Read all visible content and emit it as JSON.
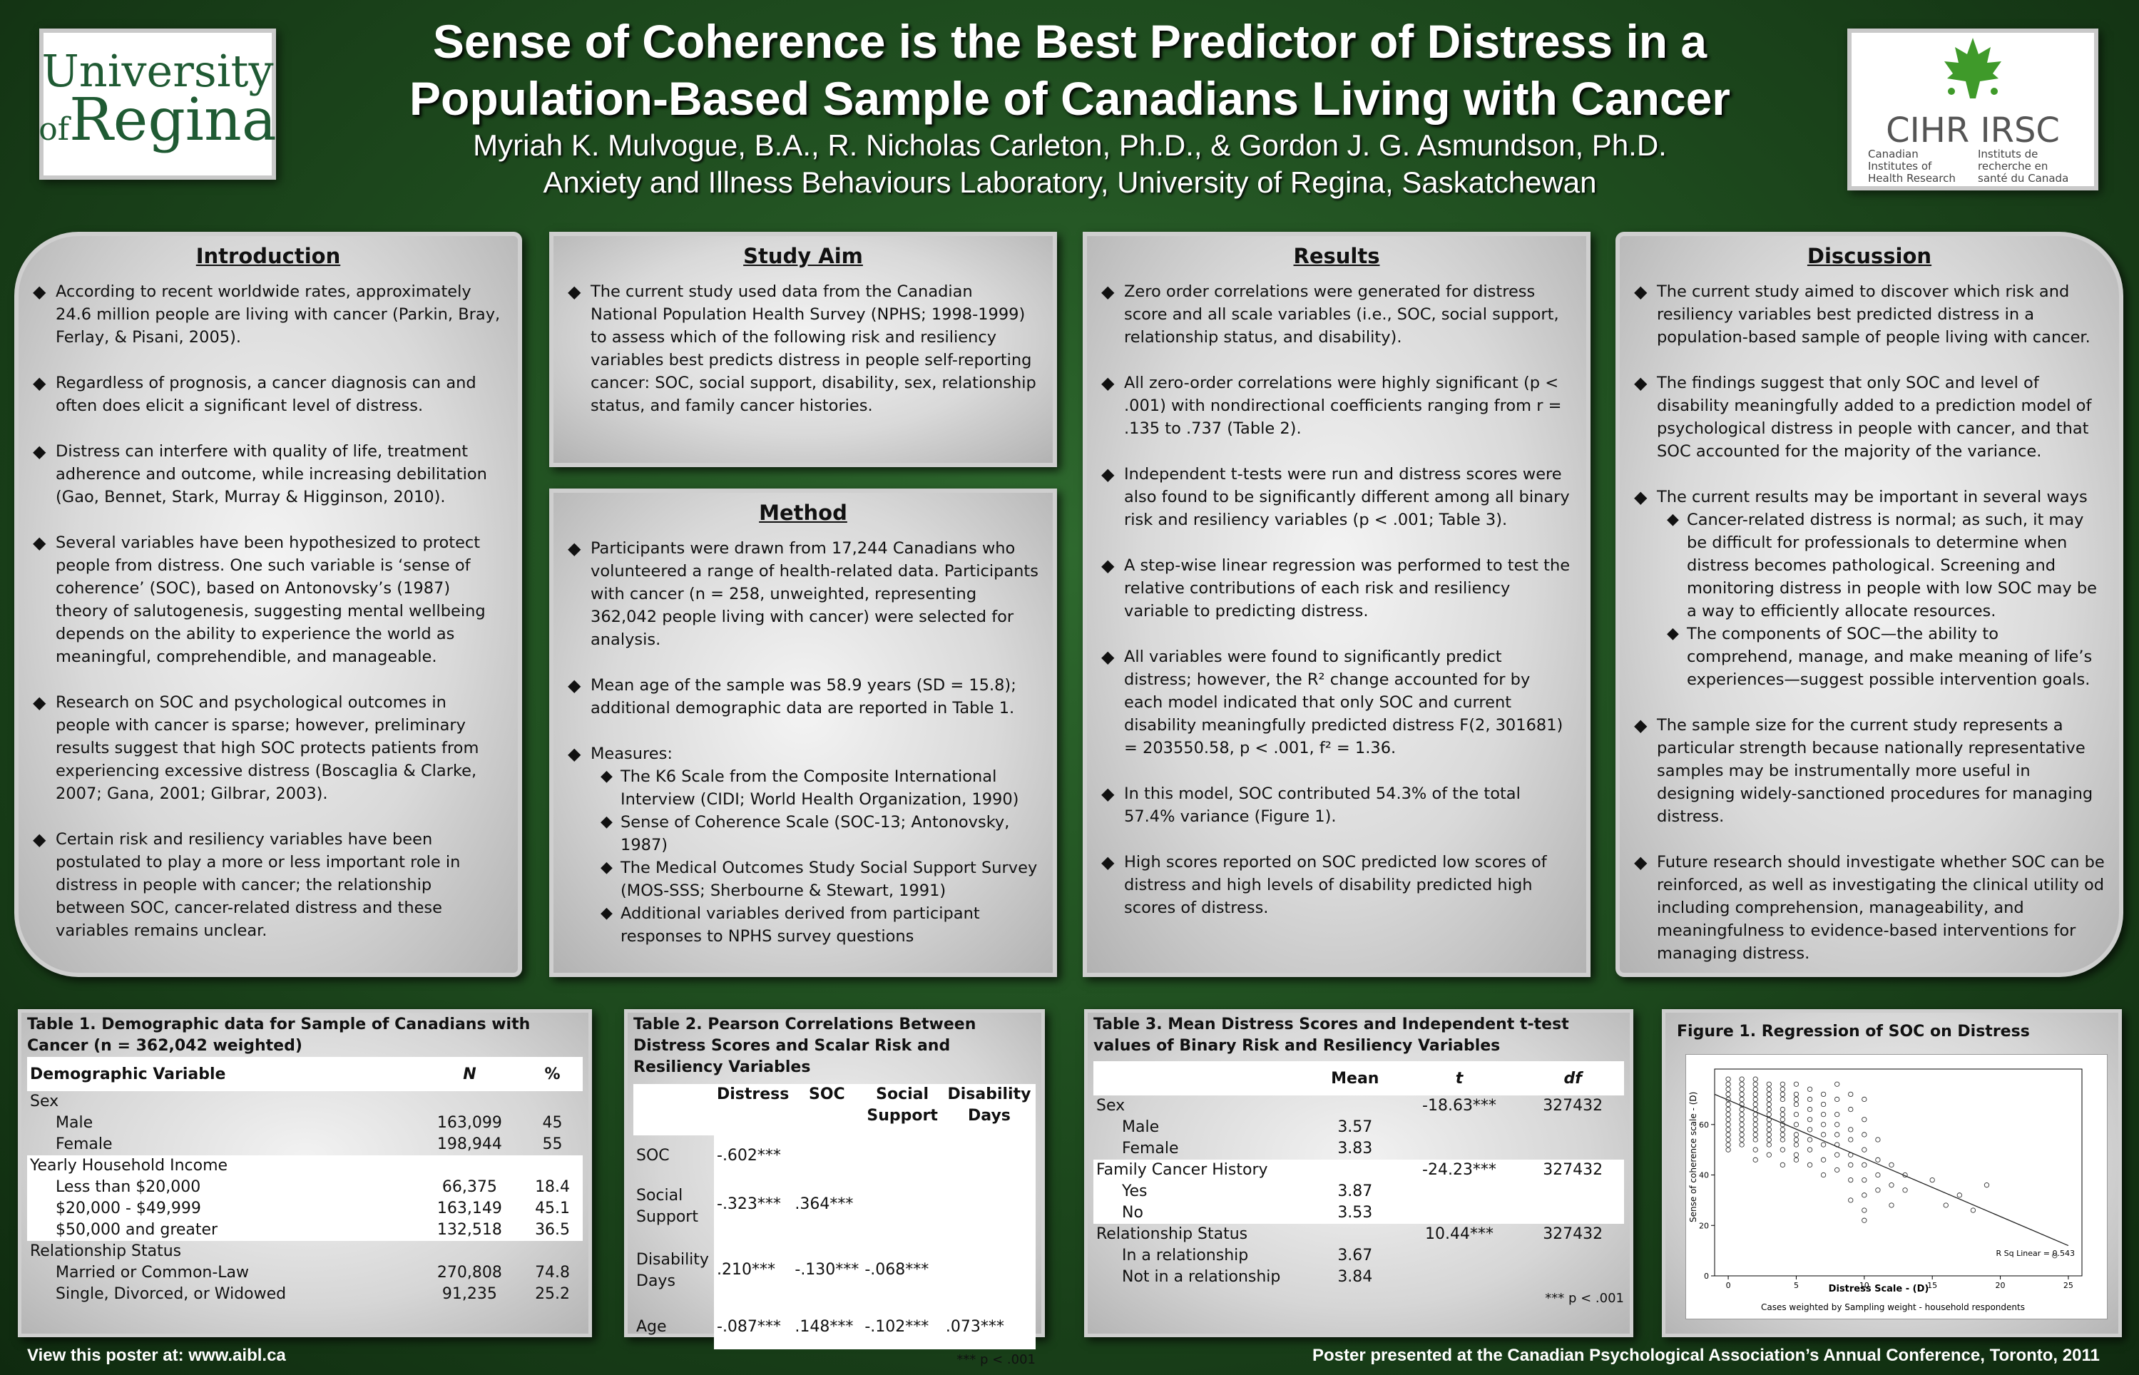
{
  "logos": {
    "uregina_line1": "University",
    "uregina_of": "of",
    "uregina_line2": "Regina",
    "cihr_main": "CIHR IRSC",
    "cihr_en": "Canadian Institutes of Health Research",
    "cihr_fr": "Instituts de recherche en santé du Canada"
  },
  "header": {
    "title_line1": "Sense of Coherence is the Best Predictor of Distress in a",
    "title_line2": "Population-Based Sample of Canadians Living with Cancer",
    "authors": "Myriah K. Mulvogue, B.A., R. Nicholas Carleton, Ph.D., & Gordon J. G. Asmundson, Ph.D.",
    "affiliation": "Anxiety and Illness Behaviours Laboratory, University of Regina, Saskatchewan"
  },
  "intro": {
    "heading": "Introduction",
    "bullets": [
      "According to recent worldwide rates, approximately 24.6 million people are living with cancer (Parkin, Bray, Ferlay, & Pisani, 2005).",
      "Regardless of prognosis, a cancer diagnosis can and often does elicit a significant level of distress.",
      "Distress can interfere with quality of life, treatment adherence and outcome, while increasing debilitation (Gao, Bennet, Stark, Murray & Higginson, 2010).",
      "Several variables have been hypothesized to protect people from distress. One such variable is ‘sense of coherence’ (SOC), based on Antonovsky’s (1987) theory of salutogenesis, suggesting mental wellbeing depends on the ability to experience the world as meaningful, comprehendible, and manageable.",
      "Research on SOC and psychological outcomes in people with cancer is sparse; however, preliminary results suggest that high SOC protects patients from experiencing excessive distress (Boscaglia & Clarke, 2007; Gana, 2001; Gilbrar, 2003).",
      "Certain risk and resiliency variables have been postulated to play a more or less important role in distress in people with cancer; the relationship between SOC, cancer-related distress and these variables remains unclear."
    ]
  },
  "aim": {
    "heading": "Study Aim",
    "bullet": "The current study used data from the Canadian National Population Health Survey (NPHS; 1998-1999) to assess which of the following risk and resiliency variables best predicts distress in people self-reporting cancer: SOC, social support, disability, sex, relationship status, and family cancer histories."
  },
  "method": {
    "heading": "Method",
    "bullet1": "Participants were drawn from 17,244 Canadians who volunteered a range of health-related data.  Participants with cancer (n = 258, unweighted, representing 362,042 people living with cancer) were selected for analysis.",
    "bullet2": "Mean age of the sample was 58.9 years (SD = 15.8); additional demographic data are reported in Table 1.",
    "bullet3": "Measures:",
    "measures": [
      "The K6 Scale from the Composite International Interview (CIDI; World Health Organization, 1990)",
      "Sense of Coherence Scale (SOC-13; Antonovsky, 1987)",
      "The Medical Outcomes Study Social Support Survey (MOS-SSS; Sherbourne & Stewart, 1991)",
      "Additional variables derived from participant responses to NPHS survey questions"
    ]
  },
  "results": {
    "heading": "Results",
    "bullets": [
      "Zero order correlations were generated for distress score and all scale variables (i.e., SOC, social support, relationship status, and disability).",
      "All zero-order correlations were highly significant (p < .001) with nondirectional coefficients ranging from r = .135 to .737 (Table 2).",
      "Independent t-tests were run and distress scores were also found to be significantly different among all binary risk and resiliency variables (p < .001; Table 3).",
      "A step-wise linear regression was performed to test the relative contributions of each risk and resiliency variable to predicting distress.",
      "All variables  were found to significantly predict distress; however, the R² change accounted for by each model indicated that only SOC and current disability meaningfully predicted distress F(2, 301681) = 203550.58, p < .001, f² = 1.36.",
      "In this model, SOC contributed 54.3% of the total 57.4% variance (Figure 1).",
      "High scores reported on SOC predicted low scores of distress and high levels of disability predicted high scores of distress."
    ]
  },
  "discussion": {
    "heading": "Discussion",
    "bullet1": "The current study aimed to discover which risk and resiliency variables best predicted distress in a population-based sample of people living with cancer.",
    "bullet2": "The findings suggest that only SOC and level of disability meaningfully added to a prediction model of psychological distress in people with cancer, and that SOC accounted for the majority of the variance.",
    "bullet3": "The current results may be important in several ways",
    "sub": [
      "Cancer-related distress is normal; as such, it may be difficult for professionals to determine when distress becomes pathological. Screening and monitoring distress in people with low SOC may be a way to efficiently allocate resources.",
      "The components of SOC—the ability to comprehend, manage, and make meaning of life’s experiences—suggest possible intervention goals."
    ],
    "bullet4": "The sample size for the current study represents a particular strength because nationally representative samples may be instrumentally more useful in designing widely-sanctioned procedures for managing distress.",
    "bullet5": "Future research should investigate whether SOC can be reinforced, as well as investigating the clinical utility od including comprehension, manageability, and meaningfulness to evidence-based interventions for managing distress."
  },
  "table1": {
    "caption": "Table 1. Demographic data for Sample of Canadians with Cancer (n = 362,042 weighted)",
    "col_var": "Demographic Variable",
    "col_n": "N",
    "col_pct": "%",
    "rows": [
      {
        "label": "Sex",
        "n": "",
        "pct": ""
      },
      {
        "label": "Male",
        "n": "163,099",
        "pct": "45"
      },
      {
        "label": "Female",
        "n": "198,944",
        "pct": "55"
      },
      {
        "label": "Yearly Household Income",
        "n": "",
        "pct": ""
      },
      {
        "label": "Less  than $20,000",
        "n": "66,375",
        "pct": "18.4"
      },
      {
        "label": "$20,000 - $49,999",
        "n": "163,149",
        "pct": "45.1"
      },
      {
        "label": "$50,000 and greater",
        "n": "132,518",
        "pct": "36.5"
      },
      {
        "label": "Relationship Status",
        "n": "",
        "pct": ""
      },
      {
        "label": "Married or Common-Law",
        "n": "270,808",
        "pct": "74.8"
      },
      {
        "label": "Single, Divorced, or Widowed",
        "n": "91,235",
        "pct": "25.2"
      }
    ]
  },
  "table2": {
    "caption": "Table 2. Pearson Correlations Between Distress Scores and Scalar Risk and Resiliency Variables",
    "cols": [
      "Distress",
      "SOC",
      "Social Support",
      "Disability Days"
    ],
    "rows": [
      {
        "label": "SOC",
        "c1": "-.602***",
        "c2": "",
        "c3": "",
        "c4": ""
      },
      {
        "label": "Social Support",
        "c1": "-.323***",
        "c2": ".364***",
        "c3": "",
        "c4": ""
      },
      {
        "label": "Disability Days",
        "c1": ".210***",
        "c2": "-.130***",
        "c3": "-.068***",
        "c4": ""
      },
      {
        "label": "Age",
        "c1": "-.087***",
        "c2": ".148***",
        "c3": "-.102***",
        "c4": ".073***"
      }
    ],
    "note": "*** p < .001"
  },
  "table3": {
    "caption": "Table 3. Mean Distress Scores and Independent t-test values of Binary Risk and Resiliency Variables",
    "col_mean": "Mean",
    "col_t": "t",
    "col_df": "df",
    "rows": [
      {
        "label": "Sex",
        "mean": "",
        "t": "-18.63***",
        "df": "327432"
      },
      {
        "label": "Male",
        "mean": "3.57",
        "t": "",
        "df": ""
      },
      {
        "label": "Female",
        "mean": "3.83",
        "t": "",
        "df": ""
      },
      {
        "label": "Family Cancer History",
        "mean": "",
        "t": "-24.23***",
        "df": "327432"
      },
      {
        "label": "Yes",
        "mean": "3.87",
        "t": "",
        "df": ""
      },
      {
        "label": "No",
        "mean": "3.53",
        "t": "",
        "df": ""
      },
      {
        "label": "Relationship Status",
        "mean": "",
        "t": "10.44***",
        "df": "327432"
      },
      {
        "label": "In a relationship",
        "mean": "3.67",
        "t": "",
        "df": ""
      },
      {
        "label": "Not in a relationship",
        "mean": "3.84",
        "t": "",
        "df": ""
      }
    ],
    "note": "*** p < .001"
  },
  "figure1": {
    "caption": "Figure 1. Regression of SOC on Distress",
    "xlabel": "Distress Scale - (D)",
    "ylabel": "Sense of coherence scale - (D)",
    "footnote": "Cases weighted by Sampling weight - household respondents",
    "rsq_label": "R Sq Linear = 0.543"
  },
  "chart_data": {
    "type": "scatter",
    "title": "Figure 1. Regression of SOC on Distress",
    "xlabel": "Distress Scale - (D)",
    "ylabel": "Sense of coherence scale - (D)",
    "xlim": [
      -1,
      26
    ],
    "ylim": [
      0,
      82
    ],
    "xticks": [
      0,
      5,
      10,
      15,
      20,
      25
    ],
    "yticks": [
      0,
      20,
      40,
      60
    ],
    "fit_line": {
      "x": [
        -1,
        25
      ],
      "y": [
        72,
        12
      ]
    },
    "annotation": "R Sq Linear = 0.543",
    "points": [
      [
        0,
        78
      ],
      [
        0,
        76
      ],
      [
        0,
        74
      ],
      [
        0,
        72
      ],
      [
        0,
        70
      ],
      [
        0,
        68
      ],
      [
        0,
        66
      ],
      [
        0,
        64
      ],
      [
        0,
        62
      ],
      [
        0,
        60
      ],
      [
        0,
        58
      ],
      [
        0,
        56
      ],
      [
        0,
        54
      ],
      [
        0,
        52
      ],
      [
        0,
        50
      ],
      [
        1,
        78
      ],
      [
        1,
        76
      ],
      [
        1,
        74
      ],
      [
        1,
        72
      ],
      [
        1,
        70
      ],
      [
        1,
        68
      ],
      [
        1,
        66
      ],
      [
        1,
        64
      ],
      [
        1,
        62
      ],
      [
        1,
        60
      ],
      [
        1,
        58
      ],
      [
        1,
        56
      ],
      [
        1,
        54
      ],
      [
        1,
        52
      ],
      [
        2,
        78
      ],
      [
        2,
        76
      ],
      [
        2,
        74
      ],
      [
        2,
        72
      ],
      [
        2,
        70
      ],
      [
        2,
        68
      ],
      [
        2,
        66
      ],
      [
        2,
        64
      ],
      [
        2,
        62
      ],
      [
        2,
        60
      ],
      [
        2,
        58
      ],
      [
        2,
        56
      ],
      [
        2,
        54
      ],
      [
        2,
        50
      ],
      [
        2,
        46
      ],
      [
        3,
        76
      ],
      [
        3,
        74
      ],
      [
        3,
        72
      ],
      [
        3,
        70
      ],
      [
        3,
        68
      ],
      [
        3,
        66
      ],
      [
        3,
        64
      ],
      [
        3,
        62
      ],
      [
        3,
        60
      ],
      [
        3,
        58
      ],
      [
        3,
        56
      ],
      [
        3,
        54
      ],
      [
        3,
        52
      ],
      [
        3,
        48
      ],
      [
        4,
        76
      ],
      [
        4,
        74
      ],
      [
        4,
        72
      ],
      [
        4,
        70
      ],
      [
        4,
        66
      ],
      [
        4,
        64
      ],
      [
        4,
        62
      ],
      [
        4,
        60
      ],
      [
        4,
        58
      ],
      [
        4,
        56
      ],
      [
        4,
        54
      ],
      [
        4,
        50
      ],
      [
        4,
        44
      ],
      [
        5,
        76
      ],
      [
        5,
        72
      ],
      [
        5,
        70
      ],
      [
        5,
        68
      ],
      [
        5,
        64
      ],
      [
        5,
        60
      ],
      [
        5,
        56
      ],
      [
        5,
        54
      ],
      [
        5,
        52
      ],
      [
        5,
        48
      ],
      [
        5,
        46
      ],
      [
        6,
        74
      ],
      [
        6,
        70
      ],
      [
        6,
        66
      ],
      [
        6,
        62
      ],
      [
        6,
        58
      ],
      [
        6,
        54
      ],
      [
        6,
        50
      ],
      [
        6,
        44
      ],
      [
        7,
        72
      ],
      [
        7,
        68
      ],
      [
        7,
        64
      ],
      [
        7,
        60
      ],
      [
        7,
        56
      ],
      [
        7,
        52
      ],
      [
        7,
        46
      ],
      [
        7,
        40
      ],
      [
        8,
        76
      ],
      [
        8,
        70
      ],
      [
        8,
        64
      ],
      [
        8,
        60
      ],
      [
        8,
        56
      ],
      [
        8,
        52
      ],
      [
        8,
        48
      ],
      [
        8,
        42
      ],
      [
        9,
        72
      ],
      [
        9,
        66
      ],
      [
        9,
        58
      ],
      [
        9,
        54
      ],
      [
        9,
        48
      ],
      [
        9,
        44
      ],
      [
        9,
        38
      ],
      [
        9,
        30
      ],
      [
        10,
        70
      ],
      [
        10,
        62
      ],
      [
        10,
        56
      ],
      [
        10,
        50
      ],
      [
        10,
        44
      ],
      [
        10,
        38
      ],
      [
        10,
        32
      ],
      [
        10,
        26
      ],
      [
        10,
        22
      ],
      [
        11,
        54
      ],
      [
        11,
        46
      ],
      [
        11,
        40
      ],
      [
        11,
        34
      ],
      [
        12,
        44
      ],
      [
        12,
        36
      ],
      [
        12,
        28
      ],
      [
        13,
        40
      ],
      [
        13,
        34
      ],
      [
        15,
        38
      ],
      [
        16,
        28
      ],
      [
        17,
        32
      ],
      [
        18,
        26
      ],
      [
        19,
        36
      ],
      [
        24,
        8
      ]
    ]
  },
  "footer": {
    "left": "View this poster at: www.aibl.ca",
    "right": "Poster presented at the Canadian Psychological Association’s Annual Conference, Toronto, 2011"
  }
}
